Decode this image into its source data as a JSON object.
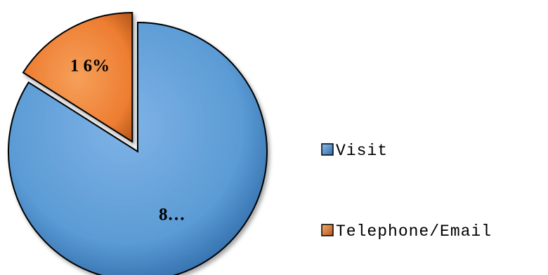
{
  "chart_data": {
    "type": "pie",
    "categories": [
      "Visit",
      "Telephone/Email"
    ],
    "values": [
      84,
      16
    ],
    "data_labels": [
      "8…",
      "1 6%"
    ],
    "colors": [
      "#5b9bd5",
      "#ed7d31"
    ],
    "exploded": [
      false,
      true
    ],
    "legend": {
      "placement": "right",
      "entries": [
        "Visit",
        "Telephone/Email"
      ]
    }
  }
}
